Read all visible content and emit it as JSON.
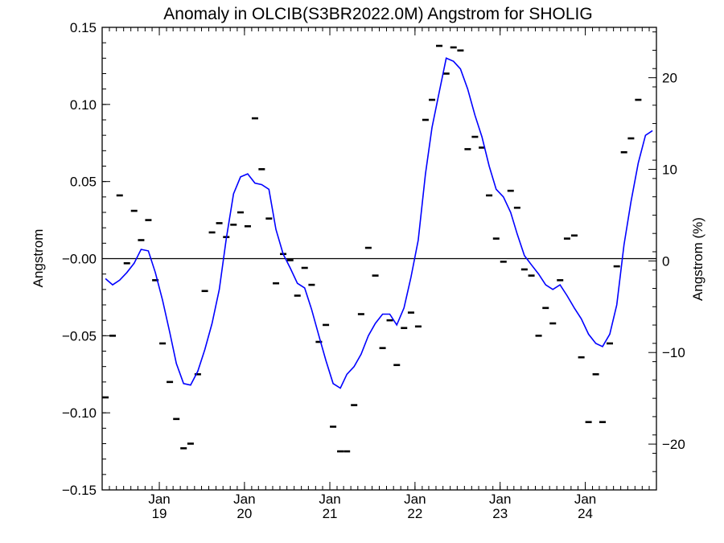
{
  "chart_data": {
    "type": "line",
    "title": "Anomaly in OLCIB(S3BR2022.0M) Angstrom for SHOLIG",
    "ylabel": "Angstrom",
    "ylabel_right": "Angstrom (%)",
    "ylim": [
      -0.15,
      0.15
    ],
    "y_ticks": [
      -0.15,
      -0.1,
      -0.05,
      0.0,
      0.05,
      0.1,
      0.15
    ],
    "y_tick_labels": [
      "−0.15",
      "−0.10",
      "−0.05",
      "−0.00",
      "0.05",
      "0.10",
      "0.15"
    ],
    "y2lim": [
      -25,
      25.5
    ],
    "y2_ticks": [
      -20,
      -10,
      0,
      10,
      20
    ],
    "y2_tick_labels": [
      "−20",
      "−10",
      "0",
      "10",
      "20"
    ],
    "xlim": [
      "2018-05-01",
      "2024-11-01"
    ],
    "x_ticks": [
      "2019-01-01",
      "2020-01-01",
      "2021-01-01",
      "2022-01-01",
      "2023-01-01",
      "2024-01-01"
    ],
    "x_tick_labels": [
      {
        "month": "Jan",
        "year": "19"
      },
      {
        "month": "Jan",
        "year": "20"
      },
      {
        "month": "Jan",
        "year": "21"
      },
      {
        "month": "Jan",
        "year": "22"
      },
      {
        "month": "Jan",
        "year": "23"
      },
      {
        "month": "Jan",
        "year": "24"
      }
    ],
    "zero_line": true,
    "grid": false,
    "line_color": "#0000ff",
    "marker_color": "#000000",
    "series": [
      {
        "style": "marker",
        "points": [
          [
            "2018-05",
            -0.09
          ],
          [
            "2018-06",
            -0.05
          ],
          [
            "2018-07",
            0.041
          ],
          [
            "2018-08",
            -0.003
          ],
          [
            "2018-09",
            0.031
          ],
          [
            "2018-10",
            0.012
          ],
          [
            "2018-11",
            0.025
          ],
          [
            "2018-12",
            -0.014
          ],
          [
            "2019-01",
            -0.055
          ],
          [
            "2019-02",
            -0.08
          ],
          [
            "2019-03",
            -0.104
          ],
          [
            "2019-04",
            -0.123
          ],
          [
            "2019-05",
            -0.12
          ],
          [
            "2019-06",
            -0.075
          ],
          [
            "2019-07",
            -0.021
          ],
          [
            "2019-08",
            0.017
          ],
          [
            "2019-09",
            0.023
          ],
          [
            "2019-10",
            0.014
          ],
          [
            "2019-11",
            0.022
          ],
          [
            "2019-12",
            0.03
          ],
          [
            "2020-01",
            0.021
          ],
          [
            "2020-02",
            0.091
          ],
          [
            "2020-03",
            0.058
          ],
          [
            "2020-04",
            0.026
          ],
          [
            "2020-05",
            -0.016
          ],
          [
            "2020-06",
            0.003
          ],
          [
            "2020-07",
            -0.001
          ],
          [
            "2020-08",
            -0.024
          ],
          [
            "2020-09",
            -0.006
          ],
          [
            "2020-10",
            -0.017
          ],
          [
            "2020-11",
            -0.054
          ],
          [
            "2020-12",
            -0.043
          ],
          [
            "2021-01",
            -0.109
          ],
          [
            "2021-02",
            -0.125
          ],
          [
            "2021-03",
            -0.125
          ],
          [
            "2021-04",
            -0.095
          ],
          [
            "2021-05",
            -0.036
          ],
          [
            "2021-06",
            0.007
          ],
          [
            "2021-07",
            -0.011
          ],
          [
            "2021-08",
            -0.058
          ],
          [
            "2021-09",
            -0.04
          ],
          [
            "2021-10",
            -0.069
          ],
          [
            "2021-11",
            -0.045
          ],
          [
            "2021-12",
            -0.035
          ],
          [
            "2022-01",
            -0.044
          ],
          [
            "2022-02",
            0.09
          ],
          [
            "2022-03",
            0.103
          ],
          [
            "2022-04",
            0.138
          ],
          [
            "2022-05",
            0.12
          ],
          [
            "2022-06",
            0.137
          ],
          [
            "2022-07",
            0.135
          ],
          [
            "2022-08",
            0.071
          ],
          [
            "2022-09",
            0.079
          ],
          [
            "2022-10",
            0.072
          ],
          [
            "2022-11",
            0.041
          ],
          [
            "2022-12",
            0.013
          ],
          [
            "2023-01",
            -0.002
          ],
          [
            "2023-02",
            0.044
          ],
          [
            "2023-03",
            0.033
          ],
          [
            "2023-04",
            -0.007
          ],
          [
            "2023-05",
            -0.011
          ],
          [
            "2023-06",
            -0.05
          ],
          [
            "2023-07",
            -0.032
          ],
          [
            "2023-08",
            -0.042
          ],
          [
            "2023-09",
            -0.014
          ],
          [
            "2023-10",
            0.013
          ],
          [
            "2023-11",
            0.015
          ],
          [
            "2023-12",
            -0.064
          ],
          [
            "2024-01",
            -0.106
          ],
          [
            "2024-02",
            -0.075
          ],
          [
            "2024-03",
            -0.106
          ],
          [
            "2024-04",
            -0.055
          ],
          [
            "2024-05",
            -0.005
          ],
          [
            "2024-06",
            0.069
          ],
          [
            "2024-07",
            0.078
          ],
          [
            "2024-08",
            0.103
          ]
        ]
      },
      {
        "style": "line",
        "points": [
          [
            "2018-05",
            -0.013
          ],
          [
            "2018-06",
            -0.017
          ],
          [
            "2018-07",
            -0.014
          ],
          [
            "2018-08",
            -0.009
          ],
          [
            "2018-09",
            -0.003
          ],
          [
            "2018-10",
            0.006
          ],
          [
            "2018-11",
            0.005
          ],
          [
            "2018-12",
            -0.009
          ],
          [
            "2019-01",
            -0.027
          ],
          [
            "2019-02",
            -0.048
          ],
          [
            "2019-03",
            -0.068
          ],
          [
            "2019-04",
            -0.081
          ],
          [
            "2019-05",
            -0.082
          ],
          [
            "2019-06",
            -0.073
          ],
          [
            "2019-07",
            -0.059
          ],
          [
            "2019-08",
            -0.042
          ],
          [
            "2019-09",
            -0.02
          ],
          [
            "2019-10",
            0.013
          ],
          [
            "2019-11",
            0.042
          ],
          [
            "2019-12",
            0.053
          ],
          [
            "2020-01",
            0.055
          ],
          [
            "2020-02",
            0.049
          ],
          [
            "2020-03",
            0.048
          ],
          [
            "2020-04",
            0.045
          ],
          [
            "2020-05",
            0.019
          ],
          [
            "2020-06",
            0.003
          ],
          [
            "2020-07",
            -0.006
          ],
          [
            "2020-08",
            -0.016
          ],
          [
            "2020-09",
            -0.019
          ],
          [
            "2020-10",
            -0.033
          ],
          [
            "2020-11",
            -0.05
          ],
          [
            "2020-12",
            -0.066
          ],
          [
            "2021-01",
            -0.081
          ],
          [
            "2021-02",
            -0.084
          ],
          [
            "2021-03",
            -0.075
          ],
          [
            "2021-04",
            -0.07
          ],
          [
            "2021-05",
            -0.062
          ],
          [
            "2021-06",
            -0.05
          ],
          [
            "2021-07",
            -0.042
          ],
          [
            "2021-08",
            -0.036
          ],
          [
            "2021-09",
            -0.036
          ],
          [
            "2021-10",
            -0.043
          ],
          [
            "2021-11",
            -0.032
          ],
          [
            "2021-12",
            -0.012
          ],
          [
            "2022-01",
            0.012
          ],
          [
            "2022-02",
            0.055
          ],
          [
            "2022-03",
            0.085
          ],
          [
            "2022-04",
            0.108
          ],
          [
            "2022-05",
            0.13
          ],
          [
            "2022-06",
            0.128
          ],
          [
            "2022-07",
            0.123
          ],
          [
            "2022-08",
            0.11
          ],
          [
            "2022-09",
            0.093
          ],
          [
            "2022-10",
            0.079
          ],
          [
            "2022-11",
            0.06
          ],
          [
            "2022-12",
            0.045
          ],
          [
            "2023-01",
            0.04
          ],
          [
            "2023-02",
            0.03
          ],
          [
            "2023-03",
            0.016
          ],
          [
            "2023-04",
            0.002
          ],
          [
            "2023-05",
            -0.004
          ],
          [
            "2023-06",
            -0.01
          ],
          [
            "2023-07",
            -0.017
          ],
          [
            "2023-08",
            -0.02
          ],
          [
            "2023-09",
            -0.017
          ],
          [
            "2023-10",
            -0.024
          ],
          [
            "2023-11",
            -0.032
          ],
          [
            "2023-12",
            -0.039
          ],
          [
            "2024-01",
            -0.049
          ],
          [
            "2024-02",
            -0.055
          ],
          [
            "2024-03",
            -0.057
          ],
          [
            "2024-04",
            -0.049
          ],
          [
            "2024-05",
            -0.03
          ],
          [
            "2024-06",
            0.009
          ],
          [
            "2024-07",
            0.037
          ],
          [
            "2024-08",
            0.062
          ],
          [
            "2024-09",
            0.08
          ],
          [
            "2024-10",
            0.083
          ]
        ]
      }
    ]
  }
}
